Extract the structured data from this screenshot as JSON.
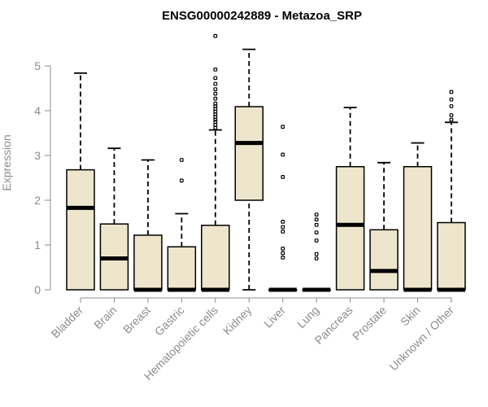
{
  "chart_data": {
    "type": "boxplot",
    "title": "ENSG00000242889 - Metazoa_SRP",
    "xlabel": "",
    "ylabel": "Expression",
    "ylim": [
      0,
      5.6
    ],
    "yticks": [
      0,
      1,
      2,
      3,
      4,
      5
    ],
    "categories": [
      "Bladder",
      "Brain",
      "Breast",
      "Gastric",
      "Hematopoietic cells",
      "Kidney",
      "Liver",
      "Lung",
      "Pancreas",
      "Prostate",
      "Skin",
      "Unknown / Other"
    ],
    "box_fill": "#ede6cc",
    "boxes": [
      {
        "category": "Bladder",
        "lower_whisker": 0,
        "q1": 0,
        "median": 1.83,
        "q3": 2.68,
        "upper_whisker": 4.84,
        "outliers": []
      },
      {
        "category": "Brain",
        "lower_whisker": 0,
        "q1": 0,
        "median": 0.7,
        "q3": 1.47,
        "upper_whisker": 3.16,
        "outliers": []
      },
      {
        "category": "Breast",
        "lower_whisker": 0,
        "q1": 0,
        "median": 0,
        "q3": 1.22,
        "upper_whisker": 2.9,
        "outliers": []
      },
      {
        "category": "Gastric",
        "lower_whisker": 0,
        "q1": 0,
        "median": 0,
        "q3": 0.96,
        "upper_whisker": 1.7,
        "outliers": [
          2.44,
          2.9
        ]
      },
      {
        "category": "Hematopoietic cells",
        "lower_whisker": 0,
        "q1": 0,
        "median": 0,
        "q3": 1.44,
        "upper_whisker": 3.57,
        "outliers": [
          3.62,
          3.68,
          3.75,
          3.8,
          3.86,
          3.92,
          3.98,
          4.04,
          4.1,
          4.16,
          4.27,
          4.38,
          4.48,
          4.6,
          4.73,
          4.92,
          5.67
        ]
      },
      {
        "category": "Kidney",
        "lower_whisker": 0,
        "q1": 2.0,
        "median": 3.28,
        "q3": 4.09,
        "upper_whisker": 5.37,
        "outliers": []
      },
      {
        "category": "Liver",
        "lower_whisker": 0,
        "q1": 0,
        "median": 0,
        "q3": 0,
        "upper_whisker": 0,
        "outliers": [
          0.72,
          0.82,
          0.92,
          1.3,
          1.4,
          1.52,
          2.52,
          3.02,
          3.64
        ]
      },
      {
        "category": "Lung",
        "lower_whisker": 0,
        "q1": 0,
        "median": 0,
        "q3": 0,
        "upper_whisker": 0,
        "outliers": [
          0.7,
          0.8,
          1.1,
          1.28,
          1.45,
          1.57,
          1.68
        ]
      },
      {
        "category": "Pancreas",
        "lower_whisker": 0,
        "q1": 0,
        "median": 1.45,
        "q3": 2.75,
        "upper_whisker": 4.07,
        "outliers": []
      },
      {
        "category": "Prostate",
        "lower_whisker": 0,
        "q1": 0,
        "median": 0.42,
        "q3": 1.34,
        "upper_whisker": 2.84,
        "outliers": []
      },
      {
        "category": "Skin",
        "lower_whisker": 0,
        "q1": 0,
        "median": 0,
        "q3": 2.75,
        "upper_whisker": 3.28,
        "outliers": []
      },
      {
        "category": "Unknown / Other",
        "lower_whisker": 0,
        "q1": 0,
        "median": 0,
        "q3": 1.5,
        "upper_whisker": 3.74,
        "outliers": [
          3.8,
          3.9,
          4.1,
          4.25,
          4.42
        ]
      }
    ]
  }
}
